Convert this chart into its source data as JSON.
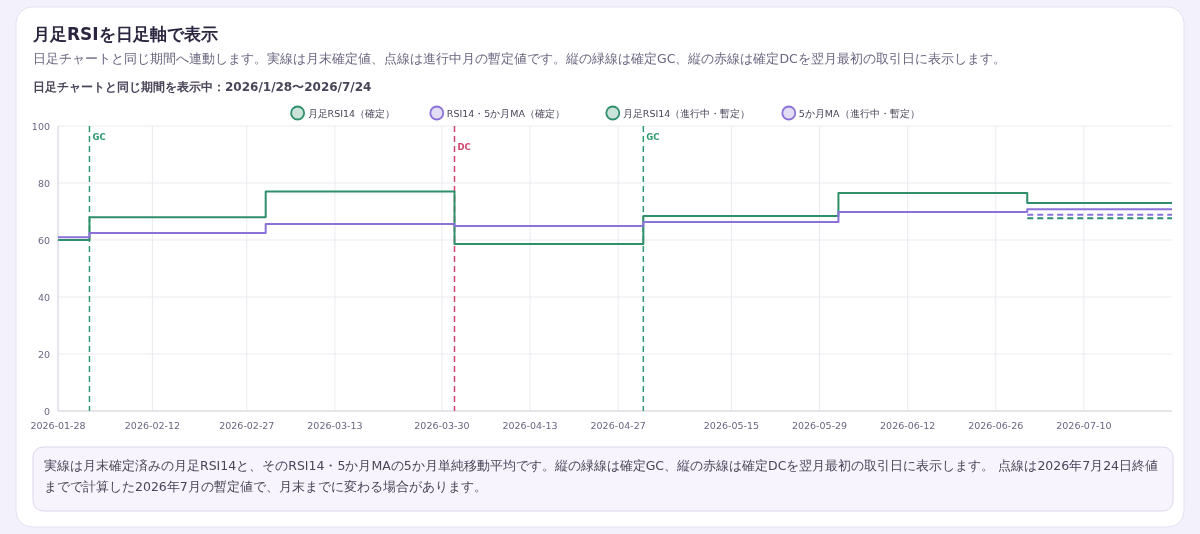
{
  "chart_data": {
    "type": "step",
    "title": "月足RSIを日足軸で表示",
    "subtitle": "日足チャートと同じ期間へ連動します。実線は月末確定値、点線は進行中月の暫定値です。縦の緑線は確定GC、縦の赤線は確定DCを翌月最初の取引日に表示します。",
    "annotations": [
      "日足チャートと同じ期間を表示中：2026/1/28〜2026/7/24",
      "実線は月末確定済みの月足RSI14と、そのRSI14・5か月MAの5か月単純移動平均です。縦の緑線は確定GC、縦の赤線は確定DCを翌月最初の取引日に表示します。 点線は2026年7月24日終値までで計算した2026年7月の暫定値で、月末までに変わる場合があります。"
    ],
    "series": [
      {
        "name": "月足RSI14（確定）",
        "color": "#2f8f6b",
        "line_style": "solid",
        "x": [
          "2026-01-28",
          "2026-02-02",
          "2026-03-02",
          "2026-04-01",
          "2026-05-01",
          "2026-06-01",
          "2026-07-01",
          "2026-07-24"
        ],
        "values": [
          60,
          68,
          77,
          58.6,
          68.4,
          76.5,
          73,
          73
        ]
      },
      {
        "name": "RSI14・5か月MA（確定）",
        "color": "#8b72d9",
        "line_style": "solid",
        "x": [
          "2026-01-28",
          "2026-02-02",
          "2026-03-02",
          "2026-04-01",
          "2026-05-01",
          "2026-06-01",
          "2026-07-01",
          "2026-07-24"
        ],
        "values": [
          61,
          62.5,
          65.6,
          64.9,
          66.3,
          69.8,
          70.8,
          70.8
        ]
      },
      {
        "name": "月足RSI14（進行中・暫定）",
        "color": "#2f8f6b",
        "line_style": "dashed",
        "x": [
          "2026-07-01",
          "2026-07-24"
        ],
        "values": [
          67.6,
          67.6
        ]
      },
      {
        "name": "5か月MA（進行中・暫定）",
        "color": "#8b72d9",
        "line_style": "dashed",
        "x": [
          "2026-07-01",
          "2026-07-24"
        ],
        "values": [
          68.9,
          68.9
        ]
      }
    ],
    "xlim": [
      "2026-01-28",
      "2026-07-24"
    ],
    "xticks": [
      "2026-01-28",
      "2026-02-12",
      "2026-02-27",
      "2026-03-13",
      "2026-03-30",
      "2026-04-13",
      "2026-04-27",
      "2026-05-15",
      "2026-05-29",
      "2026-06-12",
      "2026-06-26",
      "2026-07-10"
    ],
    "ylim": [
      0,
      100
    ],
    "yticks": [
      0,
      20,
      40,
      60,
      80,
      100
    ],
    "ref_lines": [
      {
        "axis": "x",
        "value": "2026-02-02",
        "label": "GC",
        "color": "#2f9a70",
        "line_style": "dashed"
      },
      {
        "axis": "x",
        "value": "2026-04-01",
        "label": "DC",
        "color": "#d0456e",
        "line_style": "dashed"
      },
      {
        "axis": "x",
        "value": "2026-05-01",
        "label": "GC",
        "color": "#2f9a70",
        "line_style": "dashed"
      }
    ],
    "grid": true,
    "legend": "top",
    "marker": "none"
  }
}
